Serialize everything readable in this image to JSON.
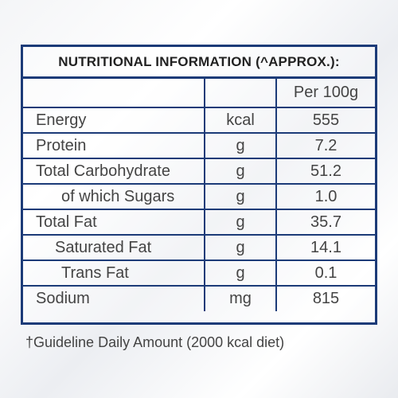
{
  "title": "NUTRITIONAL INFORMATION (^APPROX.):",
  "header": {
    "label": "",
    "unit": "",
    "value": "Per 100g"
  },
  "rows": [
    {
      "label": "Energy",
      "unit": "kcal",
      "value": "555"
    },
    {
      "label": "Protein",
      "unit": "g",
      "value": "7.2"
    },
    {
      "label": "Total Carbohydrate",
      "unit": "g",
      "value": "51.2"
    },
    {
      "label": "of which Sugars",
      "unit": "g",
      "value": "1.0"
    },
    {
      "label": "Total Fat",
      "unit": "g",
      "value": "35.7"
    },
    {
      "label": "Saturated Fat",
      "unit": "g",
      "value": "14.1"
    },
    {
      "label": "Trans Fat",
      "unit": "g",
      "value": "0.1"
    },
    {
      "label": "Sodium",
      "unit": "mg",
      "value": "815"
    }
  ],
  "footnote": "†Guideline Daily Amount (2000 kcal diet)"
}
